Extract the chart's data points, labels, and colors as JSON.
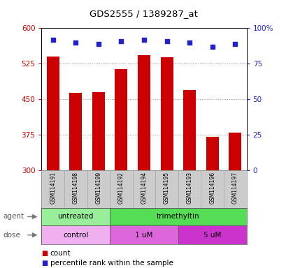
{
  "title": "GDS2555 / 1389287_at",
  "samples": [
    "GSM114191",
    "GSM114198",
    "GSM114199",
    "GSM114192",
    "GSM114194",
    "GSM114195",
    "GSM114193",
    "GSM114196",
    "GSM114197"
  ],
  "counts": [
    540,
    463,
    465,
    513,
    543,
    538,
    470,
    370,
    380
  ],
  "percentiles": [
    92,
    90,
    89,
    91,
    92,
    91,
    90,
    87,
    89
  ],
  "ymin": 300,
  "ymax": 600,
  "yticks": [
    300,
    375,
    450,
    525,
    600
  ],
  "y2min": 0,
  "y2max": 100,
  "y2ticks": [
    0,
    25,
    50,
    75,
    100
  ],
  "y2ticklabels": [
    "0",
    "25",
    "50",
    "75",
    "100%"
  ],
  "bar_color": "#cc0000",
  "dot_color": "#2222cc",
  "bar_bottom": 300,
  "agent_groups": [
    {
      "label": "untreated",
      "start": 0,
      "end": 3,
      "color": "#99ee99"
    },
    {
      "label": "trimethyltin",
      "start": 3,
      "end": 9,
      "color": "#55dd55"
    }
  ],
  "dose_groups": [
    {
      "label": "control",
      "start": 0,
      "end": 3,
      "color": "#f0b0f0"
    },
    {
      "label": "1 uM",
      "start": 3,
      "end": 6,
      "color": "#dd66dd"
    },
    {
      "label": "5 uM",
      "start": 6,
      "end": 9,
      "color": "#cc33cc"
    }
  ],
  "agent_label": "agent",
  "dose_label": "dose",
  "legend_count_label": "count",
  "legend_pct_label": "percentile rank within the sample",
  "grid_color": "#888888",
  "left_tick_color": "#cc0000",
  "right_tick_color": "#2222cc",
  "cell_bg": "#cccccc",
  "cell_edge": "#aaaaaa"
}
